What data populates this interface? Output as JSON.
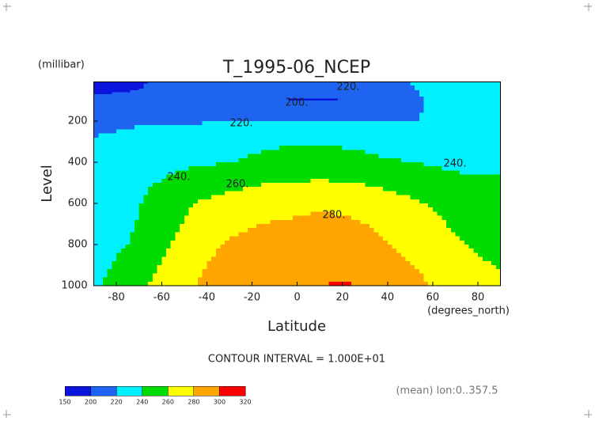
{
  "chart_data": {
    "type": "contour",
    "title": "T_1995-06_NCEP",
    "y_unit_label": "(millibar)",
    "ylabel": "Level",
    "xlabel": "Latitude",
    "x_unit_label": "(degrees_north)",
    "contour_interval": "CONTOUR INTERVAL = 1.000E+01",
    "footnote": "(mean) lon:0..357.5",
    "x": [
      -90,
      -80,
      -70,
      -60,
      -50,
      -40,
      -30,
      -20,
      -10,
      0,
      10,
      20,
      30,
      40,
      50,
      60,
      70,
      80,
      90
    ],
    "levels": [
      10,
      50,
      100,
      200,
      300,
      400,
      500,
      600,
      700,
      800,
      900,
      1000
    ],
    "z": [
      [
        192,
        194,
        198,
        203,
        210,
        214,
        216,
        216,
        216,
        215,
        215,
        216,
        216,
        217,
        220,
        224,
        226,
        226,
        226
      ],
      [
        195,
        197,
        200,
        205,
        210,
        213,
        215,
        214,
        212,
        211,
        211,
        212,
        214,
        216,
        219,
        223,
        226,
        226,
        226
      ],
      [
        205,
        208,
        212,
        214,
        215,
        215,
        214,
        208,
        200,
        198,
        198,
        199,
        205,
        212,
        216,
        222,
        226,
        226,
        225
      ],
      [
        216,
        217,
        218,
        218,
        218,
        219,
        219,
        220,
        221,
        221,
        221,
        221,
        221,
        220,
        219,
        222,
        225,
        226,
        224
      ],
      [
        221,
        223,
        226,
        228,
        230,
        232,
        234,
        236,
        238,
        239,
        239,
        238,
        236,
        233,
        230,
        229,
        230,
        231,
        232
      ],
      [
        228,
        230,
        232,
        234,
        236,
        238,
        240,
        242,
        244,
        246,
        246,
        245,
        244,
        242,
        240,
        238,
        236,
        234,
        237
      ],
      [
        230,
        232,
        236,
        241,
        247,
        251,
        254,
        257,
        260,
        261,
        262,
        261,
        259,
        255,
        252,
        248,
        245,
        243,
        243
      ],
      [
        232,
        234,
        239,
        248,
        257,
        263,
        268,
        272,
        275,
        276,
        277,
        276,
        273,
        268,
        263,
        258,
        254,
        251,
        249
      ],
      [
        234,
        236,
        241,
        252,
        261,
        270,
        275,
        279,
        281,
        282,
        284,
        283,
        280,
        275,
        269,
        263,
        258,
        255,
        253
      ],
      [
        236,
        238,
        242,
        256,
        265,
        276,
        282,
        285,
        287,
        288,
        290,
        290,
        286,
        281,
        275,
        268,
        262,
        258,
        256
      ],
      [
        237,
        241,
        250,
        261,
        271,
        280,
        285,
        289,
        291,
        293,
        295,
        296,
        292,
        287,
        281,
        274,
        268,
        262,
        259
      ],
      [
        238,
        243,
        258,
        265,
        277,
        283,
        288,
        292,
        295,
        297,
        299,
        302,
        298,
        293,
        286,
        279,
        273,
        266,
        262
      ]
    ],
    "xlim": [
      -90,
      90
    ],
    "xticks": [
      -80,
      -60,
      -40,
      -20,
      0,
      20,
      40,
      60,
      80
    ],
    "ylim": [
      1000,
      10
    ],
    "yticks": [
      200,
      400,
      600,
      800,
      1000
    ],
    "contour_labels": [
      "220.",
      "200.",
      "220.",
      "240.",
      "260.",
      "280.",
      "240."
    ],
    "colorbar": {
      "levels": [
        150,
        200,
        220,
        240,
        260,
        280,
        300,
        320
      ],
      "colors": [
        "#0a14dc",
        "#1e64f0",
        "#00f0ff",
        "#00dc00",
        "#ffff00",
        "#ffa500",
        "#ff0000"
      ]
    }
  }
}
